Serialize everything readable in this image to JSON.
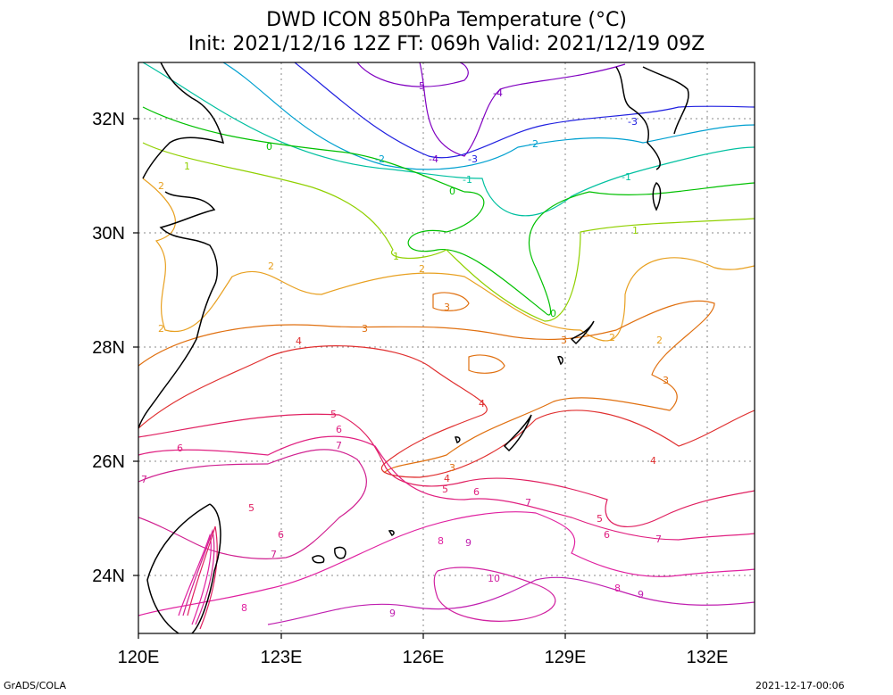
{
  "title": "DWD ICON 850hPa Temperature (°C)",
  "subtitle": "Init: 2021/12/16 12Z  FT: 069h  Valid: 2021/12/19 09Z",
  "footer_left": "GrADS/COLA",
  "footer_right": "2021-12-17-00:06",
  "map": {
    "lon_range": [
      120,
      133
    ],
    "lat_range": [
      23,
      33
    ],
    "x_ticks": [
      "120E",
      "123E",
      "126E",
      "129E",
      "132E"
    ],
    "y_ticks": [
      "32N",
      "30N",
      "28N",
      "26N",
      "24N"
    ],
    "grid": "dotted",
    "coastline_color": "#000000"
  },
  "contour_colors": {
    "-5": "#8000c0",
    "-4": "#8000c0",
    "-3": "#2020e0",
    "-2": "#00a0d0",
    "-1": "#00c0a0",
    "0": "#00c000",
    "1": "#90d000",
    "2": "#e8a020",
    "3": "#e07010",
    "4": "#e03030",
    "5": "#e02060",
    "6": "#e02080",
    "7": "#d02090",
    "8": "#e020a0",
    "9": "#c020b0",
    "10": "#d020a0"
  },
  "contour_labels": [
    "-5",
    "-4",
    "-3",
    "-2",
    "-1",
    "0",
    "1",
    "2",
    "3",
    "4",
    "5",
    "6",
    "7",
    "8",
    "9",
    "10"
  ]
}
